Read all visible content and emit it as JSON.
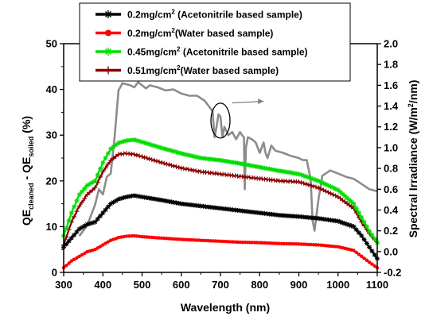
{
  "chart_data": {
    "type": "line",
    "xlabel": "Wavelength (nm)",
    "ylabel_left": {
      "base": "QE",
      "sub1": "cleaned",
      "mid": " - QE",
      "sub2": "soiled",
      "unit": " (%)"
    },
    "ylabel_right": {
      "pre": "Spectral Irradiance (W/m",
      "sup": "2",
      "post": "/nm)"
    },
    "xlim": [
      300,
      1100
    ],
    "ylim_left": [
      0,
      50
    ],
    "ylim_right": [
      -0.2,
      2.0
    ],
    "x_ticks": [
      "300",
      "400",
      "500",
      "600",
      "700",
      "800",
      "900",
      "1000",
      "1100"
    ],
    "y_ticks_left": [
      "0",
      "10",
      "20",
      "30",
      "40",
      "50"
    ],
    "y_ticks_right": [
      "-0.2",
      "0.0",
      "0.2",
      "0.4",
      "0.6",
      "0.8",
      "1.0",
      "1.2",
      "1.4",
      "1.6",
      "1.8",
      "2.0"
    ],
    "grid": false,
    "legend_position": "top",
    "series": [
      {
        "name": "0.2mg/cm² (Acetonitrile based sample)",
        "legend": {
          "pre": "0.2mg/cm",
          "sup": "2",
          "post": " (Acetonitrile based sample)"
        },
        "color": "#000000",
        "marker": "asterisk",
        "axis": "left",
        "x": [
          300,
          320,
          340,
          360,
          380,
          400,
          420,
          440,
          460,
          480,
          500,
          550,
          600,
          650,
          700,
          750,
          800,
          850,
          900,
          950,
          1000,
          1040,
          1060,
          1080,
          1100
        ],
        "y": [
          5.5,
          7.5,
          9.5,
          10.5,
          11,
          13,
          15,
          16,
          16.5,
          16.8,
          16.5,
          15.8,
          15,
          14.5,
          14,
          13.5,
          13,
          12.5,
          12.2,
          11.8,
          11.2,
          10,
          8,
          5.5,
          3
        ]
      },
      {
        "name": "0.2mg/cm²(Water based sample)",
        "legend": {
          "pre": "0.2mg/cm",
          "sup": "2",
          "post": "(Water based sample)"
        },
        "color": "#ff0000",
        "marker": "circle",
        "axis": "left",
        "x": [
          300,
          320,
          340,
          360,
          380,
          400,
          420,
          440,
          460,
          480,
          500,
          550,
          600,
          650,
          700,
          750,
          800,
          850,
          900,
          950,
          1000,
          1040,
          1060,
          1080,
          1100
        ],
        "y": [
          1,
          2.5,
          3.5,
          4.5,
          5,
          6,
          7,
          7.6,
          7.9,
          8,
          7.8,
          7.5,
          7.2,
          7,
          6.8,
          6.6,
          6.5,
          6.3,
          6.2,
          6,
          5.6,
          4.8,
          3.5,
          2.2,
          1
        ]
      },
      {
        "name": "0.45mg/cm² (Acetonitrile based sample)",
        "legend": {
          "pre": "0.45mg/cm",
          "sup": "2",
          "post": " (Acetonitrile based sample)"
        },
        "color": "#00dd00",
        "marker": "asterisk",
        "axis": "left",
        "x": [
          300,
          320,
          340,
          360,
          380,
          400,
          420,
          440,
          460,
          480,
          500,
          550,
          600,
          650,
          700,
          750,
          800,
          850,
          900,
          950,
          1000,
          1040,
          1060,
          1080,
          1100
        ],
        "y": [
          8,
          13,
          17,
          19,
          20,
          24,
          27,
          28.3,
          28.8,
          29,
          28.5,
          27.2,
          26,
          25,
          24.5,
          23.8,
          23,
          22.2,
          21.5,
          20,
          18,
          15,
          12,
          9,
          6.5
        ]
      },
      {
        "name": "0.51mg/cm²(Water based sample)",
        "legend": {
          "pre": "0.51mg/cm",
          "sup": "2",
          "post": "(Water based sample)"
        },
        "color": "#8b0000",
        "marker": "plus",
        "axis": "left",
        "x": [
          300,
          320,
          340,
          360,
          380,
          400,
          420,
          440,
          460,
          480,
          500,
          550,
          600,
          650,
          700,
          750,
          800,
          850,
          900,
          950,
          1000,
          1040,
          1060,
          1080,
          1100
        ],
        "y": [
          6,
          11,
          14.5,
          17,
          18.5,
          22,
          24.5,
          25.8,
          26,
          25.8,
          25.3,
          24,
          22.8,
          22,
          21.5,
          21,
          20.5,
          20,
          19.8,
          18.5,
          16.5,
          14,
          11,
          8.5,
          6.5
        ]
      },
      {
        "color": "#8c8c8c",
        "marker": "none",
        "axis": "right",
        "x": [
          340,
          360,
          380,
          390,
          400,
          410,
          420,
          430,
          440,
          450,
          460,
          470,
          480,
          490,
          500,
          510,
          520,
          540,
          560,
          580,
          600,
          620,
          640,
          660,
          670,
          680,
          685,
          690,
          695,
          700,
          705,
          710,
          720,
          730,
          740,
          750,
          755,
          760,
          762,
          765,
          770,
          780,
          790,
          800,
          810,
          815,
          820,
          830,
          840,
          860,
          880,
          900,
          910,
          920,
          930,
          935,
          940,
          950,
          960,
          980,
          1000,
          1020,
          1040,
          1060,
          1080,
          1100
        ],
        "y": [
          0.15,
          0.25,
          0.45,
          0.6,
          0.55,
          0.72,
          0.75,
          1.1,
          1.55,
          1.62,
          1.61,
          1.6,
          1.58,
          1.63,
          1.6,
          1.57,
          1.6,
          1.58,
          1.55,
          1.56,
          1.52,
          1.5,
          1.5,
          1.45,
          1.4,
          1.35,
          1.1,
          1.2,
          1.32,
          1.3,
          1.1,
          1.2,
          1.12,
          1.15,
          1.08,
          1.15,
          1.12,
          1.1,
          0.6,
          1.0,
          1.1,
          1.08,
          1.05,
          0.95,
          1.05,
          0.95,
          0.9,
          1.02,
          0.97,
          0.95,
          0.92,
          0.9,
          0.88,
          0.88,
          0.7,
          0.3,
          0.2,
          0.5,
          0.73,
          0.78,
          0.75,
          0.72,
          0.7,
          0.65,
          0.6,
          0.58
        ]
      }
    ],
    "annotations": [
      {
        "type": "ellipse",
        "center_x": 700,
        "center_y_right": 1.26
      },
      {
        "type": "arrow",
        "direction": "right",
        "from_x": 730,
        "to_x": 810,
        "at_y_right": 1.43
      }
    ]
  }
}
